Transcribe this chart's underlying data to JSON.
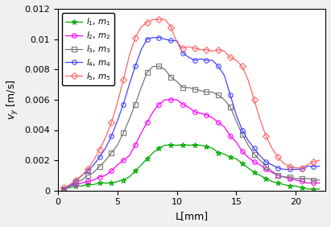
{
  "title": "",
  "xlabel": "L[mm]",
  "ylabel": "v_y [m/s]",
  "xlim": [
    0,
    22.5
  ],
  "ylim": [
    0,
    0.012
  ],
  "series": [
    {
      "label": "$l_1$, $m_1$",
      "color": "#00AA00",
      "marker": "*",
      "x": [
        0.5,
        1.0,
        1.5,
        2.0,
        2.5,
        3.0,
        3.5,
        4.0,
        4.5,
        5.0,
        5.5,
        6.0,
        6.5,
        7.0,
        7.5,
        8.0,
        8.5,
        9.0,
        9.5,
        10.0,
        10.5,
        11.0,
        11.5,
        12.0,
        12.5,
        13.0,
        13.5,
        14.0,
        14.5,
        15.0,
        15.5,
        16.0,
        16.5,
        17.0,
        17.5,
        18.0,
        18.5,
        19.0,
        19.5,
        20.0,
        20.5,
        21.0,
        21.5,
        22.0
      ],
      "y": [
        0.0001,
        0.0002,
        0.0003,
        0.0003,
        0.0004,
        0.0004,
        0.0005,
        0.0005,
        0.0005,
        0.0006,
        0.0007,
        0.0009,
        0.0013,
        0.0017,
        0.0021,
        0.0025,
        0.0028,
        0.003,
        0.003,
        0.003,
        0.003,
        0.003,
        0.003,
        0.003,
        0.0029,
        0.0028,
        0.0025,
        0.0024,
        0.0022,
        0.0021,
        0.0018,
        0.0015,
        0.0012,
        0.001,
        0.0008,
        0.0006,
        0.0005,
        0.0004,
        0.0003,
        0.0003,
        0.0002,
        0.0001,
        0.0001,
        0.0001
      ]
    },
    {
      "label": "$l_2$, $m_2$",
      "color": "#FF00FF",
      "marker": "o",
      "x": [
        0.5,
        1.0,
        1.5,
        2.0,
        2.5,
        3.0,
        3.5,
        4.0,
        4.5,
        5.0,
        5.5,
        6.0,
        6.5,
        7.0,
        7.5,
        8.0,
        8.5,
        9.0,
        9.5,
        10.0,
        10.5,
        11.0,
        11.5,
        12.0,
        12.5,
        13.0,
        13.5,
        14.0,
        14.5,
        15.0,
        15.5,
        16.0,
        16.5,
        17.0,
        17.5,
        18.0,
        18.5,
        19.0,
        19.5,
        20.0,
        20.5,
        21.0,
        21.5,
        22.0
      ],
      "y": [
        0.0001,
        0.0003,
        0.0004,
        0.0005,
        0.0006,
        0.0007,
        0.0009,
        0.001,
        0.0013,
        0.0017,
        0.002,
        0.0023,
        0.003,
        0.0038,
        0.0045,
        0.0052,
        0.0057,
        0.006,
        0.006,
        0.006,
        0.0057,
        0.0055,
        0.0052,
        0.0051,
        0.005,
        0.0048,
        0.0045,
        0.0042,
        0.0036,
        0.0032,
        0.0026,
        0.0022,
        0.0019,
        0.0017,
        0.0014,
        0.0012,
        0.001,
        0.0009,
        0.0008,
        0.0007,
        0.0006,
        0.0005,
        0.0005,
        0.0005
      ]
    },
    {
      "label": "$l_3$, $m_3$",
      "color": "#777777",
      "marker": "s",
      "x": [
        0.5,
        1.0,
        1.5,
        2.0,
        2.5,
        3.0,
        3.5,
        4.0,
        4.5,
        5.0,
        5.5,
        6.0,
        6.5,
        7.0,
        7.5,
        8.0,
        8.5,
        9.0,
        9.5,
        10.0,
        10.5,
        11.0,
        11.5,
        12.0,
        12.5,
        13.0,
        13.5,
        14.0,
        14.5,
        15.0,
        15.5,
        16.0,
        16.5,
        17.0,
        17.5,
        18.0,
        18.5,
        19.0,
        19.5,
        20.0,
        20.5,
        21.0,
        21.5,
        22.0
      ],
      "y": [
        0.0001,
        0.0003,
        0.0005,
        0.0007,
        0.001,
        0.0012,
        0.0016,
        0.002,
        0.0025,
        0.003,
        0.0038,
        0.0047,
        0.0057,
        0.0068,
        0.0078,
        0.0082,
        0.0082,
        0.008,
        0.0075,
        0.0072,
        0.0068,
        0.0068,
        0.0067,
        0.0066,
        0.0065,
        0.0065,
        0.0063,
        0.006,
        0.0055,
        0.0046,
        0.0037,
        0.003,
        0.0024,
        0.002,
        0.0016,
        0.0013,
        0.001,
        0.0009,
        0.0009,
        0.0008,
        0.0008,
        0.0008,
        0.0007,
        0.0007
      ]
    },
    {
      "label": "$l_4$, $m_4$",
      "color": "#4444FF",
      "marker": "o",
      "x": [
        0.5,
        1.0,
        1.5,
        2.0,
        2.5,
        3.0,
        3.5,
        4.0,
        4.5,
        5.0,
        5.5,
        6.0,
        6.5,
        7.0,
        7.5,
        8.0,
        8.5,
        9.0,
        9.5,
        10.0,
        10.5,
        11.0,
        11.5,
        12.0,
        12.5,
        13.0,
        13.5,
        14.0,
        14.5,
        15.0,
        15.5,
        16.0,
        16.5,
        17.0,
        17.5,
        18.0,
        18.5,
        19.0,
        19.5,
        20.0,
        20.5,
        21.0,
        21.5,
        22.0
      ],
      "y": [
        0.0001,
        0.0003,
        0.0006,
        0.001,
        0.0013,
        0.0017,
        0.0022,
        0.0028,
        0.0036,
        0.0046,
        0.0057,
        0.007,
        0.0082,
        0.0093,
        0.01,
        0.0101,
        0.0101,
        0.01,
        0.0099,
        0.0099,
        0.0091,
        0.0088,
        0.0086,
        0.0087,
        0.0086,
        0.0086,
        0.0082,
        0.0076,
        0.0063,
        0.005,
        0.004,
        0.0033,
        0.0028,
        0.0023,
        0.0019,
        0.0017,
        0.0015,
        0.0014,
        0.0014,
        0.0014,
        0.0014,
        0.0016,
        0.0016,
        0.0016
      ]
    },
    {
      "label": "$l_5$, $m_5$",
      "color": "#FF6666",
      "marker": "D",
      "x": [
        0.5,
        1.0,
        1.5,
        2.0,
        2.5,
        3.0,
        3.5,
        4.0,
        4.5,
        5.0,
        5.5,
        6.0,
        6.5,
        7.0,
        7.5,
        8.0,
        8.5,
        9.0,
        9.5,
        10.0,
        10.5,
        11.0,
        11.5,
        12.0,
        12.5,
        13.0,
        13.5,
        14.0,
        14.5,
        15.0,
        15.5,
        16.0,
        16.5,
        17.0,
        17.5,
        18.0,
        18.5,
        19.0,
        19.5,
        20.0,
        20.5,
        21.0,
        21.5,
        22.0
      ],
      "y": [
        0.0002,
        0.0004,
        0.0007,
        0.001,
        0.0014,
        0.002,
        0.0027,
        0.0035,
        0.0045,
        0.0058,
        0.0073,
        0.0089,
        0.0101,
        0.0108,
        0.0111,
        0.0113,
        0.0113,
        0.0113,
        0.0108,
        0.0098,
        0.0094,
        0.0095,
        0.0094,
        0.0093,
        0.0093,
        0.0092,
        0.0093,
        0.0092,
        0.0088,
        0.0086,
        0.0082,
        0.0073,
        0.006,
        0.0047,
        0.0036,
        0.0028,
        0.0022,
        0.0018,
        0.0016,
        0.0015,
        0.0015,
        0.0017,
        0.0019,
        0.002
      ]
    }
  ]
}
